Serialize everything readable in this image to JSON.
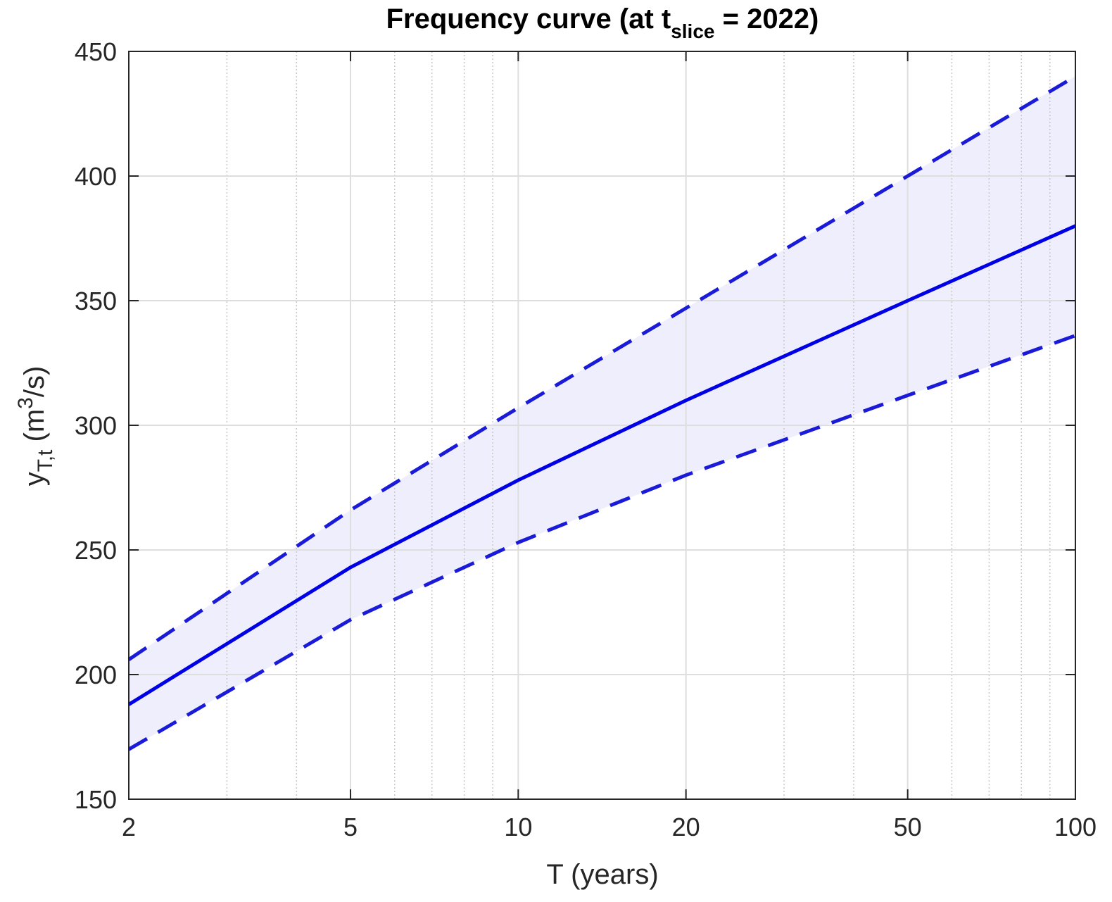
{
  "chart_data": {
    "type": "line",
    "title": {
      "main": "Frequency curve (at t",
      "subscript": "slice",
      "suffix": " = 2022)"
    },
    "xlabel": "T (years)",
    "ylabel": {
      "base": "y",
      "subscript": "T,t",
      "unit_open": " (m",
      "unit_sup": "3",
      "unit_close": "/s)"
    },
    "x_scale": "log",
    "xlim": [
      2,
      100
    ],
    "ylim": [
      150,
      450
    ],
    "x_ticks": [
      2,
      5,
      10,
      20,
      50,
      100
    ],
    "x_tick_labels": [
      "2",
      "5",
      "10",
      "20",
      "50",
      "100"
    ],
    "y_ticks": [
      150,
      200,
      250,
      300,
      350,
      400,
      450
    ],
    "y_tick_labels": [
      "150",
      "200",
      "250",
      "300",
      "350",
      "400",
      "450"
    ],
    "grid": true,
    "minor_grid_x": true,
    "x": [
      2,
      5,
      10,
      20,
      50,
      100
    ],
    "series": [
      {
        "role": "estimate",
        "style": "solid",
        "color": "#0000e6",
        "values": [
          188,
          243,
          278,
          310,
          350,
          380
        ]
      },
      {
        "role": "upper-bound",
        "style": "dashed",
        "color": "#1a1ad9",
        "values": [
          206,
          266,
          307,
          347,
          400,
          440
        ]
      },
      {
        "role": "lower-bound",
        "style": "dashed",
        "color": "#1a1ad9",
        "values": [
          170,
          222,
          253,
          280,
          312,
          336
        ]
      }
    ],
    "band_fill": "#eeeefc"
  }
}
